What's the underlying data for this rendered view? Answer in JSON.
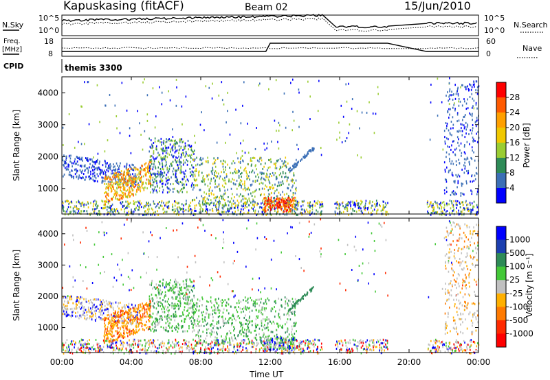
{
  "header": {
    "station": "Kapuskasing (fitACF)",
    "beam": "Beam 02",
    "date": "15/Jun/2010"
  },
  "left_labels": {
    "nsky": "N.Sky",
    "freq_line1": "Freq.",
    "freq_line2": "[MHz]",
    "cpid": "CPID"
  },
  "right_labels": {
    "nsearch": "N.Search",
    "nave": "Nave"
  },
  "cpid_text": "themis 3300",
  "chart_data": [
    {
      "type": "line",
      "title": "N.Sky / N.Search",
      "y_ticks_left": [
        "10^5",
        "10^0"
      ],
      "y_ticks_right": [
        "10^5",
        "10^0"
      ],
      "series": [
        {
          "name": "N.Sky",
          "style": "solid"
        },
        {
          "name": "N.Search",
          "style": "dotted"
        }
      ]
    },
    {
      "type": "line",
      "title": "Freq / Nave",
      "y_ticks_left": [
        "18",
        "8"
      ],
      "y_ticks_right": [
        "60",
        "0"
      ],
      "series": [
        {
          "name": "Freq.",
          "style": "solid"
        },
        {
          "name": "Nave",
          "style": "dotted"
        }
      ]
    },
    {
      "type": "heatmap",
      "quantity": "Power",
      "ylabel": "Slant Range [km]",
      "y_ticks": [
        1000,
        2000,
        3000,
        4000
      ],
      "ylim": [
        200,
        4500
      ],
      "xlim": [
        0,
        24
      ],
      "colorbar_label": "Power [dB]",
      "colorbar_ticks": [
        "28",
        "24",
        "20",
        "16",
        "12",
        "8",
        "4"
      ],
      "colorbar_colors": [
        "#ff0000",
        "#ff5a00",
        "#ffa000",
        "#f0c800",
        "#9acd32",
        "#2e8b57",
        "#3b6fb6",
        "#0000ff"
      ],
      "data_gaps_ut": [
        [
          15.0,
          15.7
        ],
        [
          18.8,
          21.0
        ]
      ]
    },
    {
      "type": "heatmap",
      "quantity": "Velocity",
      "ylabel": "Slant Range [km]",
      "y_ticks": [
        1000,
        2000,
        3000,
        4000
      ],
      "ylim": [
        200,
        4500
      ],
      "xlim": [
        0,
        24
      ],
      "colorbar_label": "Velocity [m s⁻¹]",
      "colorbar_ticks": [
        "1000",
        "500",
        "100",
        "25",
        "-25",
        "-100",
        "-500",
        "-1000"
      ],
      "colorbar_colors": [
        "#0000ff",
        "#1c3fb0",
        "#2e8b57",
        "#44c838",
        "#c0c0c0",
        "#ffb000",
        "#ff7a00",
        "#ff2a00",
        "#ff0000"
      ],
      "xlabel": "Time UT",
      "x_ticks": [
        "00:00",
        "04:00",
        "08:00",
        "12:00",
        "16:00",
        "20:00",
        "00:00"
      ],
      "data_gaps_ut": [
        [
          15.0,
          15.7
        ],
        [
          18.8,
          21.0
        ]
      ]
    }
  ]
}
